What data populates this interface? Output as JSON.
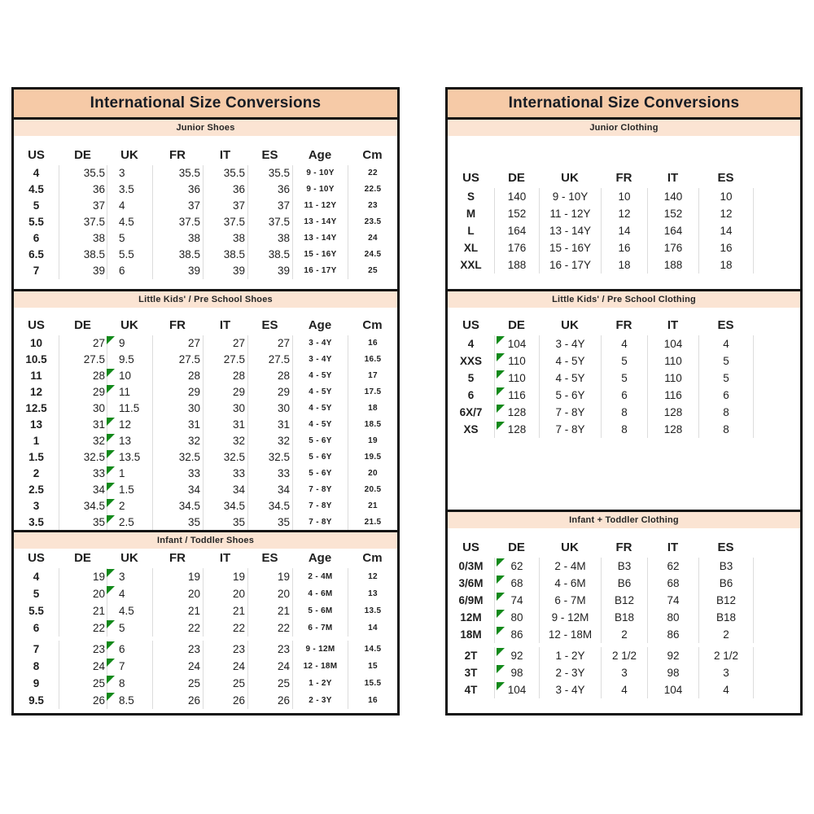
{
  "colors": {
    "title_bg": "#f6caa7",
    "band_bg": "#fbe4d3",
    "border": "#141414",
    "separator": "#dcdcdc",
    "flag_green": "#12891a",
    "text": "#1f1f1f"
  },
  "shoes_table": {
    "title": "International Size Conversions",
    "columns": [
      "US",
      "DE",
      "UK",
      "FR",
      "IT",
      "ES",
      "Age",
      "Cm"
    ],
    "sections": [
      {
        "name": "Junior Shoes",
        "rows": [
          {
            "cells": [
              "4",
              "35.5",
              "3",
              "35.5",
              "35.5",
              "35.5",
              "9 - 10Y",
              "22"
            ]
          },
          {
            "cells": [
              "4.5",
              "36",
              "3.5",
              "36",
              "36",
              "36",
              "9 - 10Y",
              "22.5"
            ]
          },
          {
            "cells": [
              "5",
              "37",
              "4",
              "37",
              "37",
              "37",
              "11 - 12Y",
              "23"
            ]
          },
          {
            "cells": [
              "5.5",
              "37.5",
              "4.5",
              "37.5",
              "37.5",
              "37.5",
              "13 - 14Y",
              "23.5"
            ]
          },
          {
            "cells": [
              "6",
              "38",
              "5",
              "38",
              "38",
              "38",
              "13 - 14Y",
              "24"
            ]
          },
          {
            "cells": [
              "6.5",
              "38.5",
              "5.5",
              "38.5",
              "38.5",
              "38.5",
              "15 - 16Y",
              "24.5"
            ]
          },
          {
            "cells": [
              "7",
              "39",
              "6",
              "39",
              "39",
              "39",
              "16 - 17Y",
              "25"
            ]
          }
        ]
      },
      {
        "name": "Little Kids' / Pre School Shoes",
        "rows": [
          {
            "cells": [
              "10",
              "27",
              "9",
              "27",
              "27",
              "27",
              "3 - 4Y",
              "16"
            ],
            "flag": true
          },
          {
            "cells": [
              "10.5",
              "27.5",
              "9.5",
              "27.5",
              "27.5",
              "27.5",
              "3 - 4Y",
              "16.5"
            ]
          },
          {
            "cells": [
              "11",
              "28",
              "10",
              "28",
              "28",
              "28",
              "4 - 5Y",
              "17"
            ],
            "flag": true
          },
          {
            "cells": [
              "12",
              "29",
              "11",
              "29",
              "29",
              "29",
              "4 - 5Y",
              "17.5"
            ],
            "flag": true
          },
          {
            "cells": [
              "12.5",
              "30",
              "11.5",
              "30",
              "30",
              "30",
              "4 - 5Y",
              "18"
            ]
          },
          {
            "cells": [
              "13",
              "31",
              "12",
              "31",
              "31",
              "31",
              "4 - 5Y",
              "18.5"
            ],
            "flag": true
          },
          {
            "cells": [
              "1",
              "32",
              "13",
              "32",
              "32",
              "32",
              "5 - 6Y",
              "19"
            ],
            "flag": true
          },
          {
            "cells": [
              "1.5",
              "32.5",
              "13.5",
              "32.5",
              "32.5",
              "32.5",
              "5 - 6Y",
              "19.5"
            ],
            "flag": true
          },
          {
            "cells": [
              "2",
              "33",
              "1",
              "33",
              "33",
              "33",
              "5 - 6Y",
              "20"
            ],
            "flag": true
          },
          {
            "cells": [
              "2.5",
              "34",
              "1.5",
              "34",
              "34",
              "34",
              "7 - 8Y",
              "20.5"
            ],
            "flag": true
          },
          {
            "cells": [
              "3",
              "34.5",
              "2",
              "34.5",
              "34.5",
              "34.5",
              "7 - 8Y",
              "21"
            ],
            "flag": true
          },
          {
            "cells": [
              "3.5",
              "35",
              "2.5",
              "35",
              "35",
              "35",
              "7 - 8Y",
              "21.5"
            ],
            "flag": true
          }
        ]
      },
      {
        "name": "Infant / Toddler Shoes",
        "rows": [
          {
            "cells": [
              "4",
              "19",
              "3",
              "19",
              "19",
              "19",
              "2 - 4M",
              "12"
            ],
            "flag": true
          },
          {
            "cells": [
              "5",
              "20",
              "4",
              "20",
              "20",
              "20",
              "4 - 6M",
              "13"
            ],
            "flag": true
          },
          {
            "cells": [
              "5.5",
              "21",
              "4.5",
              "21",
              "21",
              "21",
              "5 - 6M",
              "13.5"
            ]
          },
          {
            "cells": [
              "6",
              "22",
              "5",
              "22",
              "22",
              "22",
              "6 - 7M",
              "14"
            ],
            "flag": true
          },
          {
            "cells": [
              "7",
              "23",
              "6",
              "23",
              "23",
              "23",
              "9 - 12M",
              "14.5"
            ],
            "flag": true,
            "gap": true
          },
          {
            "cells": [
              "8",
              "24",
              "7",
              "24",
              "24",
              "24",
              "12 - 18M",
              "15"
            ],
            "flag": true
          },
          {
            "cells": [
              "9",
              "25",
              "8",
              "25",
              "25",
              "25",
              "1 - 2Y",
              "15.5"
            ],
            "flag": true
          },
          {
            "cells": [
              "9.5",
              "26",
              "8.5",
              "26",
              "26",
              "26",
              "2 - 3Y",
              "16"
            ],
            "flag": true
          }
        ]
      }
    ]
  },
  "clothing_table": {
    "title": "International Size Conversions",
    "columns": [
      "US",
      "DE",
      "UK",
      "FR",
      "IT",
      "ES"
    ],
    "sections": [
      {
        "name": "Junior Clothing",
        "rows": [
          {
            "cells": [
              "S",
              "140",
              "9 - 10Y",
              "10",
              "140",
              "10"
            ]
          },
          {
            "cells": [
              "M",
              "152",
              "11 - 12Y",
              "12",
              "152",
              "12"
            ]
          },
          {
            "cells": [
              "L",
              "164",
              "13 - 14Y",
              "14",
              "164",
              "14"
            ]
          },
          {
            "cells": [
              "XL",
              "176",
              "15 - 16Y",
              "16",
              "176",
              "16"
            ]
          },
          {
            "cells": [
              "XXL",
              "188",
              "16 - 17Y",
              "18",
              "188",
              "18"
            ]
          }
        ]
      },
      {
        "name": "Little Kids' / Pre School Clothing",
        "rows": [
          {
            "cells": [
              "4",
              "104",
              "3 - 4Y",
              "4",
              "104",
              "4"
            ],
            "flag": true
          },
          {
            "cells": [
              "XXS",
              "110",
              "4 - 5Y",
              "5",
              "110",
              "5"
            ],
            "flag": true
          },
          {
            "cells": [
              "5",
              "110",
              "4 - 5Y",
              "5",
              "110",
              "5"
            ],
            "flag": true
          },
          {
            "cells": [
              "6",
              "116",
              "5 - 6Y",
              "6",
              "116",
              "6"
            ],
            "flag": true
          },
          {
            "cells": [
              "6X/7",
              "128",
              "7 - 8Y",
              "8",
              "128",
              "8"
            ],
            "flag": true
          },
          {
            "cells": [
              "XS",
              "128",
              "7 - 8Y",
              "8",
              "128",
              "8"
            ],
            "flag": true
          }
        ]
      },
      {
        "name": "Infant + Toddler Clothing",
        "rows": [
          {
            "cells": [
              "0/3M",
              "62",
              "2 - 4M",
              "B3",
              "62",
              "B3"
            ],
            "flag": true
          },
          {
            "cells": [
              "3/6M",
              "68",
              "4 - 6M",
              "B6",
              "68",
              "B6"
            ],
            "flag": true
          },
          {
            "cells": [
              "6/9M",
              "74",
              "6 - 7M",
              "B12",
              "74",
              "B12"
            ],
            "flag": true
          },
          {
            "cells": [
              "12M",
              "80",
              "9 - 12M",
              "B18",
              "80",
              "B18"
            ],
            "flag": true
          },
          {
            "cells": [
              "18M",
              "86",
              "12 - 18M",
              "2",
              "86",
              "2"
            ],
            "flag": true
          },
          {
            "cells": [
              "2T",
              "92",
              "1 - 2Y",
              "2 1/2",
              "92",
              "2 1/2"
            ],
            "flag": true,
            "gap": true
          },
          {
            "cells": [
              "3T",
              "98",
              "2 - 3Y",
              "3",
              "98",
              "3"
            ],
            "flag": true
          },
          {
            "cells": [
              "4T",
              "104",
              "3 - 4Y",
              "4",
              "104",
              "4"
            ],
            "flag": true
          }
        ]
      }
    ]
  }
}
